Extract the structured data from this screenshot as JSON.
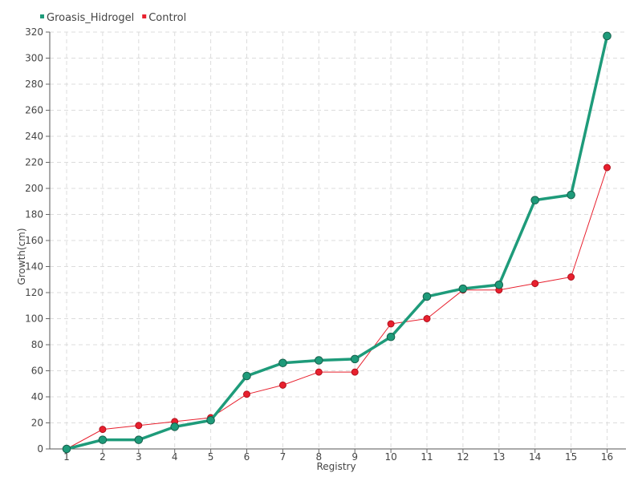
{
  "chart_data": {
    "type": "line",
    "title": "",
    "xlabel": "Registry",
    "ylabel": "Growth(cm)",
    "x": [
      1,
      2,
      3,
      4,
      5,
      6,
      7,
      8,
      9,
      10,
      11,
      12,
      13,
      14,
      15,
      16
    ],
    "ylim": [
      0,
      320
    ],
    "yticks": [
      0,
      20,
      40,
      60,
      80,
      100,
      120,
      140,
      160,
      180,
      200,
      220,
      240,
      260,
      280,
      300,
      320
    ],
    "grid": true,
    "legend": "top-left",
    "series": [
      {
        "name": "Groasis_Hidrogel",
        "color": "#1e9b7a",
        "values": [
          0,
          7,
          7,
          17,
          22,
          56,
          66,
          68,
          69,
          86,
          117,
          123,
          126,
          191,
          195,
          317
        ]
      },
      {
        "name": "Control",
        "color": "#e8202e",
        "values": [
          0,
          15,
          18,
          21,
          24,
          42,
          49,
          59,
          59,
          96,
          100,
          122,
          122,
          127,
          132,
          216
        ]
      }
    ]
  }
}
